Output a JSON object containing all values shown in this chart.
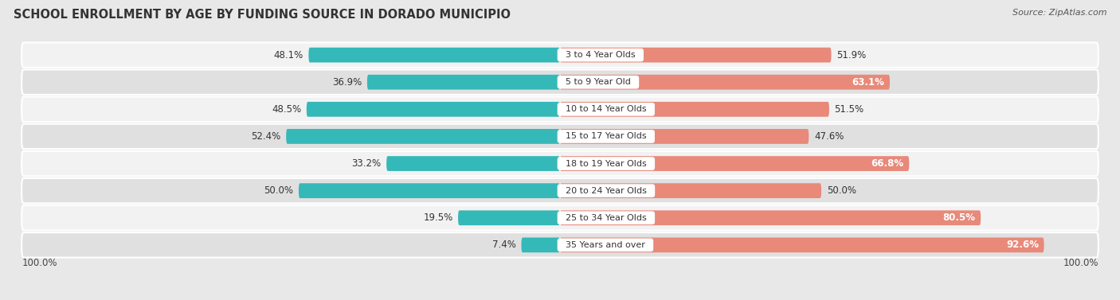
{
  "title": "SCHOOL ENROLLMENT BY AGE BY FUNDING SOURCE IN DORADO MUNICIPIO",
  "source": "Source: ZipAtlas.com",
  "categories": [
    "3 to 4 Year Olds",
    "5 to 9 Year Old",
    "10 to 14 Year Olds",
    "15 to 17 Year Olds",
    "18 to 19 Year Olds",
    "20 to 24 Year Olds",
    "25 to 34 Year Olds",
    "35 Years and over"
  ],
  "public_values": [
    48.1,
    36.9,
    48.5,
    52.4,
    33.2,
    50.0,
    19.5,
    7.4
  ],
  "private_values": [
    51.9,
    63.1,
    51.5,
    47.6,
    66.8,
    50.0,
    80.5,
    92.6
  ],
  "public_color": "#35b8b8",
  "private_color": "#e8897a",
  "bg_color": "#e8e8e8",
  "row_bg_light": "#f2f2f2",
  "row_bg_dark": "#e0e0e0",
  "axis_label_left": "100.0%",
  "axis_label_right": "100.0%",
  "title_fontsize": 10.5,
  "label_fontsize": 8.5,
  "category_fontsize": 8.0,
  "source_fontsize": 8,
  "private_inside_threshold": 55
}
